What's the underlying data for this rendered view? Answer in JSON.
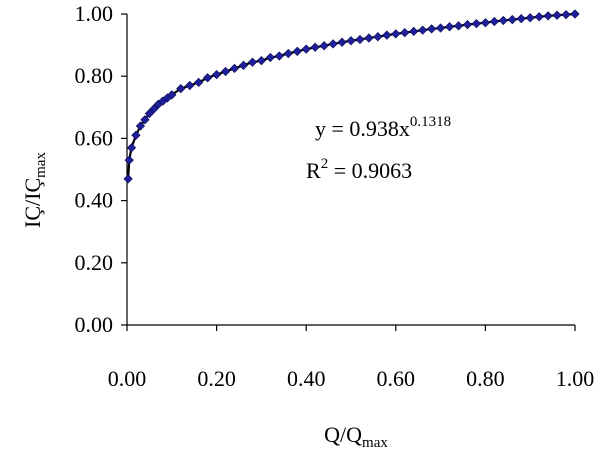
{
  "chart_data": {
    "type": "scatter",
    "title": "",
    "xlabel_main": "Q/Q",
    "xlabel_sub": "max",
    "ylabel_main": "IÇ/IÇ",
    "ylabel_sub": "max",
    "xlim": [
      0,
      1
    ],
    "ylim": [
      0,
      1
    ],
    "xticks": [
      "0.00",
      "0.20",
      "0.40",
      "0.60",
      "0.80",
      "1.00"
    ],
    "yticks": [
      "0.00",
      "0.20",
      "0.40",
      "0.60",
      "0.80",
      "1.00"
    ],
    "grid": false,
    "legend": "none",
    "trendline": {
      "eq_prefix": "y = 0.938x",
      "eq_exponent": "0.1318",
      "r2_prefix": "R",
      "r2_power": "2",
      "r2_value": " = 0.9063",
      "a": 0.938,
      "b": 0.1318
    },
    "marker_color": "#1f1f9c",
    "line_color": "#000000",
    "series": [
      {
        "x": [
          0.0025,
          0.005,
          0.01,
          0.02,
          0.03,
          0.04,
          0.05,
          0.06,
          0.07,
          0.08,
          0.09,
          0.1,
          0.12,
          0.14,
          0.16,
          0.18,
          0.2,
          0.22,
          0.24,
          0.26,
          0.28,
          0.3,
          0.32,
          0.34,
          0.36,
          0.38,
          0.4,
          0.42,
          0.44,
          0.46,
          0.48,
          0.5,
          0.52,
          0.54,
          0.56,
          0.58,
          0.6,
          0.62,
          0.64,
          0.66,
          0.68,
          0.7,
          0.72,
          0.74,
          0.76,
          0.78,
          0.8,
          0.82,
          0.84,
          0.86,
          0.88,
          0.9,
          0.92,
          0.94,
          0.96,
          0.98,
          1.0
        ],
        "y": [
          0.47,
          0.53,
          0.57,
          0.61,
          0.64,
          0.66,
          0.68,
          0.695,
          0.71,
          0.72,
          0.73,
          0.74,
          0.76,
          0.77,
          0.78,
          0.795,
          0.805,
          0.815,
          0.825,
          0.835,
          0.845,
          0.85,
          0.86,
          0.865,
          0.873,
          0.88,
          0.887,
          0.893,
          0.898,
          0.904,
          0.909,
          0.914,
          0.918,
          0.923,
          0.927,
          0.932,
          0.936,
          0.94,
          0.944,
          0.948,
          0.952,
          0.955,
          0.959,
          0.962,
          0.966,
          0.969,
          0.972,
          0.976,
          0.979,
          0.982,
          0.985,
          0.988,
          0.991,
          0.994,
          0.996,
          0.998,
          1.0
        ]
      }
    ]
  }
}
